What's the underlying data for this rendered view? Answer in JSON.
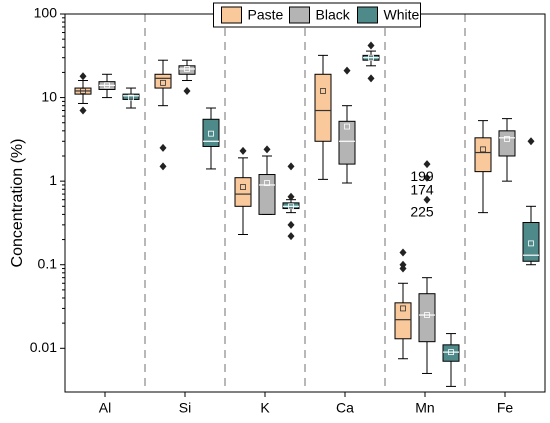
{
  "chart_data": {
    "type": "box",
    "ylabel": "Concentration (%)",
    "categories": [
      "Al",
      "Si",
      "K",
      "Ca",
      "Mn",
      "Fe"
    ],
    "ylim": [
      0.003,
      100
    ],
    "yticks": [
      0.01,
      0.1,
      1,
      10,
      100
    ],
    "log_y": true,
    "legend": "upper center",
    "series": [
      {
        "name": "Paste",
        "color": "#f9c89b",
        "median_color": "#333333",
        "boxes": [
          {
            "min": 8.5,
            "q1": 11,
            "median": 12,
            "q3": 13,
            "max": 16,
            "mean": 12,
            "outliers": [
              18,
              7
            ]
          },
          {
            "min": 8,
            "q1": 13,
            "median": 17,
            "q3": 19,
            "max": 28,
            "mean": 15,
            "outliers": [
              2.5,
              1.5
            ]
          },
          {
            "min": 0.23,
            "q1": 0.5,
            "median": 0.7,
            "q3": 1.1,
            "max": 1.9,
            "mean": 0.85,
            "outliers": [
              2.3
            ]
          },
          {
            "min": 1.05,
            "q1": 3,
            "median": 7,
            "q3": 19,
            "max": 32,
            "mean": 12,
            "outliers": []
          },
          {
            "min": 0.0075,
            "q1": 0.013,
            "median": 0.022,
            "q3": 0.035,
            "max": 0.06,
            "mean": 0.03,
            "outliers": [
              0.14,
              0.1,
              0.09
            ]
          },
          {
            "min": 0.42,
            "q1": 1.3,
            "median": 2.2,
            "q3": 3.3,
            "max": 5.3,
            "mean": 2.4,
            "outliers": []
          }
        ]
      },
      {
        "name": "Black",
        "color": "#b4b4b4",
        "median_color": "#ffffff",
        "boxes": [
          {
            "min": 10,
            "q1": 12.5,
            "median": 14,
            "q3": 15.5,
            "max": 19,
            "mean": 14,
            "outliers": []
          },
          {
            "min": 16,
            "q1": 19,
            "median": 22,
            "q3": 24,
            "max": 28,
            "mean": 22,
            "outliers": [
              12
            ]
          },
          {
            "min": 0.4,
            "q1": 0.4,
            "median": 0.9,
            "q3": 1.2,
            "max": 2.0,
            "mean": 0.95,
            "outliers": [
              2.4
            ]
          },
          {
            "min": 0.95,
            "q1": 1.6,
            "median": 3,
            "q3": 5.2,
            "max": 8,
            "mean": 4.5,
            "outliers": [
              21
            ]
          },
          {
            "min": 0.005,
            "q1": 0.012,
            "median": 0.025,
            "q3": 0.045,
            "max": 0.07,
            "mean": 0.025,
            "outliers": [
              1.6,
              1.1,
              0.6
            ]
          },
          {
            "min": 1.0,
            "q1": 2,
            "median": 3.3,
            "q3": 4,
            "max": 5.6,
            "mean": 3.2,
            "outliers": []
          }
        ]
      },
      {
        "name": "White",
        "color": "#4e8a8a",
        "median_color": "#ffffff",
        "boxes": [
          {
            "min": 7.5,
            "q1": 9.5,
            "median": 10.5,
            "q3": 11,
            "max": 13,
            "mean": 10,
            "outliers": []
          },
          {
            "min": 1.4,
            "q1": 2.6,
            "median": 3,
            "q3": 5.5,
            "max": 7.5,
            "mean": 3.7,
            "outliers": []
          },
          {
            "min": 0.42,
            "q1": 0.47,
            "median": 0.5,
            "q3": 0.55,
            "max": 0.6,
            "mean": 0.5,
            "outliers": [
              1.5,
              0.65,
              0.3,
              0.22
            ]
          },
          {
            "min": 24,
            "q1": 28,
            "median": 30,
            "q3": 32,
            "max": 36,
            "mean": 30,
            "outliers": [
              42,
              17
            ]
          },
          {
            "min": 0.0035,
            "q1": 0.007,
            "median": 0.009,
            "q3": 0.011,
            "max": 0.015,
            "mean": 0.009,
            "outliers": []
          },
          {
            "min": 0.1,
            "q1": 0.11,
            "median": 0.13,
            "q3": 0.32,
            "max": 0.5,
            "mean": 0.18,
            "outliers": [
              3
            ]
          }
        ]
      }
    ],
    "annotations": [
      "199",
      "174",
      "225"
    ]
  }
}
